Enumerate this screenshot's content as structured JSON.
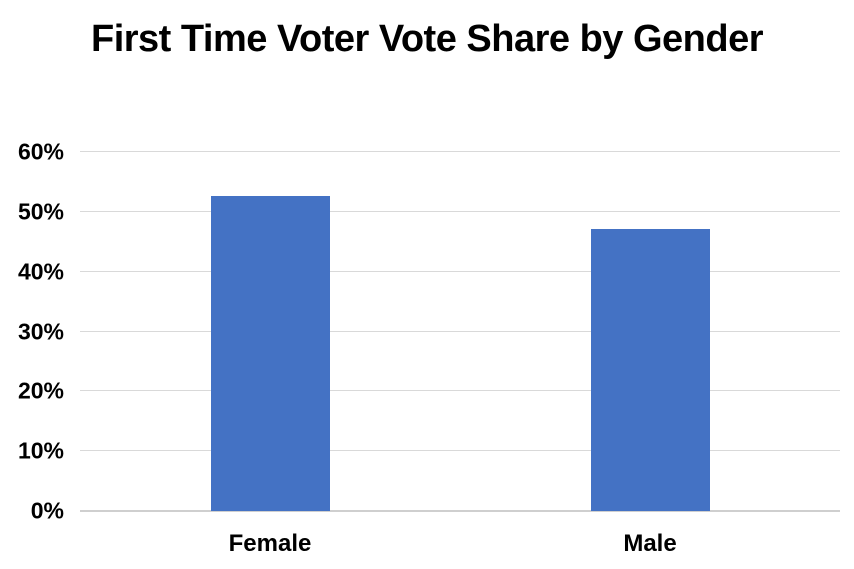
{
  "title": "First Time Voter Vote Share by Gender",
  "chart_data": {
    "type": "bar",
    "title": "First Time Voter Vote Share by Gender",
    "categories": [
      "Female",
      "Male"
    ],
    "values": [
      52.7,
      47.2
    ],
    "value_unit": "%",
    "xlabel": "",
    "ylabel": "",
    "ylim": [
      0,
      60
    ],
    "ytick_step": 10,
    "ytick_labels": [
      "0%",
      "10%",
      "20%",
      "30%",
      "40%",
      "50%",
      "60%"
    ],
    "grid": true,
    "legend": false,
    "colors": {
      "bar": "#4472C4",
      "gridline": "#D9D9D9",
      "axis_line": "#CFCFCF",
      "text": "#000000",
      "background": "#FFFFFF"
    }
  }
}
